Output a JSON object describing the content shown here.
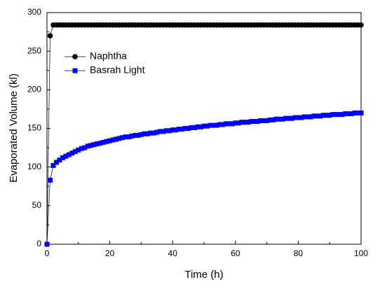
{
  "chart_data": {
    "type": "line",
    "x_label": "Time (h)",
    "y_label": "Evaporated Volume (kl)",
    "xlim": [
      0,
      100
    ],
    "xticks": [
      0,
      20,
      40,
      60,
      80,
      100
    ],
    "ylim": [
      0,
      300
    ],
    "yticks": [
      0,
      50,
      100,
      150,
      200,
      250,
      300
    ],
    "legend": "upper left",
    "x": [
      0,
      1,
      2,
      3,
      4,
      5,
      6,
      7,
      8,
      9,
      10,
      11,
      12,
      13,
      14,
      15,
      16,
      17,
      18,
      19,
      20,
      21,
      22,
      23,
      24,
      25,
      26,
      27,
      28,
      29,
      30,
      31,
      32,
      33,
      34,
      35,
      36,
      37,
      38,
      39,
      40,
      41,
      42,
      43,
      44,
      45,
      46,
      47,
      48,
      49,
      50,
      51,
      52,
      53,
      54,
      55,
      56,
      57,
      58,
      59,
      60,
      61,
      62,
      63,
      64,
      65,
      66,
      67,
      68,
      69,
      70,
      71,
      72,
      73,
      74,
      75,
      76,
      77,
      78,
      79,
      80,
      81,
      82,
      83,
      84,
      85,
      86,
      87,
      88,
      89,
      90,
      91,
      92,
      93,
      94,
      95,
      96,
      97,
      98,
      99,
      100
    ],
    "series": [
      {
        "name": "Naphtha",
        "color": "#000000",
        "marker": "circle",
        "values": [
          0,
          270,
          284,
          284,
          284,
          284,
          284,
          284,
          284,
          284,
          284,
          284,
          284,
          284,
          284,
          284,
          284,
          284,
          284,
          284,
          284,
          284,
          284,
          284,
          284,
          284,
          284,
          284,
          284,
          284,
          284,
          284,
          284,
          284,
          284,
          284,
          284,
          284,
          284,
          284,
          284,
          284,
          284,
          284,
          284,
          284,
          284,
          284,
          284,
          284,
          284,
          284,
          284,
          284,
          284,
          284,
          284,
          284,
          284,
          284,
          284,
          284,
          284,
          284,
          284,
          284,
          284,
          284,
          284,
          284,
          284,
          284,
          284,
          284,
          284,
          284,
          284,
          284,
          284,
          284,
          284,
          284,
          284,
          284,
          284,
          284,
          284,
          284,
          284,
          284,
          284,
          284,
          284,
          284,
          284,
          284,
          284,
          284,
          284,
          284,
          284
        ]
      },
      {
        "name": "Basrah Light",
        "color": "#0000ff",
        "marker": "square",
        "values": [
          0,
          83,
          102,
          106,
          109,
          112,
          114,
          116,
          118,
          120,
          122,
          124,
          125,
          127,
          128,
          129,
          130,
          131,
          132,
          133,
          134,
          135,
          136,
          137,
          138,
          139,
          139,
          140,
          141,
          141,
          142,
          143,
          143,
          144,
          144,
          145,
          146,
          146,
          147,
          147,
          148,
          148,
          149,
          149,
          150,
          150,
          151,
          151,
          152,
          152,
          153,
          153,
          154,
          154,
          154,
          155,
          155,
          156,
          156,
          156,
          157,
          157,
          158,
          158,
          158,
          159,
          159,
          159,
          160,
          160,
          160,
          161,
          161,
          162,
          162,
          162,
          163,
          163,
          163,
          164,
          164,
          164,
          165,
          165,
          165,
          166,
          166,
          166,
          167,
          167,
          167,
          168,
          168,
          168,
          168,
          169,
          169,
          169,
          170,
          170,
          170
        ]
      }
    ]
  }
}
